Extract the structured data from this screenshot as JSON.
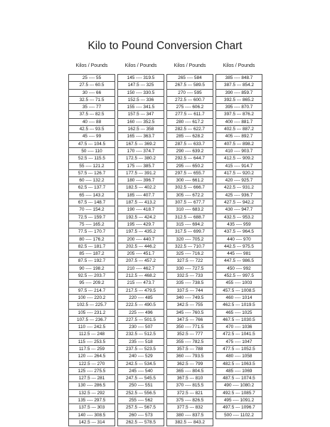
{
  "title": "Kilo to Pound Conversion Chart",
  "columns": [
    {
      "header": "Kilos / Pounds",
      "rows": [
        "25 ---- 55",
        "27.5 --- 60.5",
        "30 ---- 66",
        "32.5 --- 71.5",
        "35 ---- 77",
        "37.5 --- 82.5",
        "40 ---- 88",
        "42.5 --- 93.5",
        "45 ---- 99",
        "47.5 --- 104.5",
        "50 ---- 110",
        "52.5 --- 115.5",
        "55 ---- 121.2",
        "57.5 --- 126.7",
        "60 ---- 132.2",
        "62.5 --- 137.7",
        "65 ---- 143.2",
        "67.5 --- 148.7",
        "70 ---- 154.2",
        "72.5 --- 159.7",
        "75 ---- 165.2",
        "77.5 --- 170.7",
        "80 ---- 176.2",
        "82.5 --- 181.7",
        "85 ---- 187.2",
        "87.5 --- 192.7",
        "90 ---- 198.2",
        "92.5 --- 203.7",
        "95 ---- 209.2",
        "97.5 --- 214.7",
        "100 ---- 220.2",
        "102.5 --- 225.7",
        "105 ---- 231.2",
        "107.5 --- 236.7",
        "110 ---- 242.5",
        "112.5 --- 248",
        "115 ---- 253.5",
        "117.5 --- 259",
        "120 ---- 264.5",
        "122.5 --- 270",
        "125 ---- 275.5",
        "127.5 --- 281",
        "130 ---- 286.5",
        "132.5 --- 292",
        "135 ---- 297.5",
        "137.5 --- 303",
        "140 ---- 308.5",
        "142.5 --- 314"
      ]
    },
    {
      "header": "Kilos / Pounds",
      "rows": [
        "145 ---- 319.5",
        "147.5 --- 325",
        "150 ---- 330.5",
        "152.5 --- 336",
        "155 ---- 341.5",
        "157.5 --- 347",
        "160 ---- 352.5",
        "162.5 --- 358",
        "165 ---- 363.7",
        "167.5 --- 369.2",
        "170 ---- 374.7",
        "172.5 --- 380.2",
        "175 ---- 385.7",
        "177.5 --- 391.2",
        "180 ---- 396.7",
        "182.5 --- 402.2",
        "185 ---- 407.7",
        "187.5 --- 413.2",
        "190 ---- 418.7",
        "192.5 --- 424.2",
        "195 ---- 429.7",
        "197.5 --- 435.2",
        "200 ---- 440.7",
        "202.5 --- 446.2",
        "205 ---- 451.7",
        "207.5 --- 457.2",
        "210 ---- 462.7",
        "212.5 --- 468.2",
        "215 ---- 473.7",
        "217.5 --- 479.5",
        "220 ---- 485",
        "222.5 --- 490.5",
        "225 ---- 496",
        "227.5 --- 501.5",
        "230 ---- 507",
        "232.5 --- 512.5",
        "235 ---- 518",
        "237.5 --- 523.5",
        "240 ---- 529",
        "242.5 --- 534.5",
        "245 ---- 540",
        "247.5 --- 545.5",
        "250 ---- 551",
        "252.5 --- 556.5",
        "255 ---- 562",
        "257.5 --- 567.5",
        "260 ---- 573",
        "262.5 --- 578.5"
      ]
    },
    {
      "header": "Kilos / Pounds",
      "rows": [
        "265 ---- 584",
        "267.5 --- 589.5",
        "270 ---- 595",
        "272.5 --- 600.7",
        "275 ---- 606.2",
        "277.5 --- 611.7",
        "280 ---- 617.2",
        "282.5 --- 622.7",
        "285 ---- 628.2",
        "287.5 --- 633.7",
        "290 ---- 639.2",
        "292.5 --- 644.7",
        "295 ---- 650.2",
        "297.5 --- 655.7",
        "300 ---- 661.2",
        "302.5 --- 666.7",
        "305 ---- 672.2",
        "307.5 --- 677.7",
        "310 ---- 683.2",
        "312.5 --- 688.7",
        "315 ---- 694.2",
        "317.5 --- 699.7",
        "320 ---- 705.2",
        "322.5 --- 710.7",
        "325 ---- 716.2",
        "327.5 --- 722",
        "330 ---- 727.5",
        "332.5 --- 733",
        "335 ---- 738.5",
        "337.5 --- 744",
        "340 ---- 749.5",
        "342.5 --- 755",
        "345 ---- 760.5",
        "347.5 --- 766",
        "350 ---- 771.5",
        "352.5 --- 777",
        "355 ---- 782.5",
        "357.5 --- 788",
        "360 ---- 793.5",
        "362.5 --- 799",
        "365 ---- 804.5",
        "367.5 --- 810",
        "370 ---- 815.5",
        "372.5 --- 821",
        "375 ---- 826.5",
        "377.5 --- 832",
        "380 ---- 837.5",
        "382.5 --- 843.2"
      ]
    },
    {
      "header": "Kilos / Pounds",
      "rows": [
        "385 ---- 848.7",
        "387.5 --- 854.2",
        "390 ---- 859.7",
        "392.5 --- 865.2",
        "395 ---- 870.7",
        "397.5 --- 876.2",
        "400 ---- 881.7",
        "402.5 --- 887.2",
        "405 ---- 892.7",
        "407.5 --- 898.2",
        "410 ---- 903.7",
        "412.5 --- 909.2",
        "415 ---- 914.7",
        "417.5 --- 920.2",
        "420 ---- 925.7",
        "422.5 --- 931.2",
        "425 ---- 936.7",
        "427.5 --- 942.2",
        "430 ---- 947.7",
        "432.5 --- 953.2",
        "435 ---- 959",
        "437.5 --- 964.5",
        "440 ---- 970",
        "442.5 --- 975.5",
        "445 ---- 981",
        "447.5 --- 986.5",
        "450 ---- 992",
        "452.5 --- 997.5",
        "455 ---- 1003",
        "457.5 --- 1008.5",
        "460 ---- 1014",
        "462.5 --- 1019.5",
        "465 ---- 1025",
        "467.5 --- 1030.5",
        "470 ---- 1036",
        "472.5 --- 1041.5",
        "475 ---- 1047",
        "477.5 --- 1052.5",
        "480 ---- 1058",
        "482.5 --- 1063.5",
        "485 ---- 1069",
        "487.5 --- 1074.5",
        "490 ---- 1080.2",
        "492.5 --- 1085.7",
        "495 ---- 1091.2",
        "497.5 --- 1096.7",
        "500 ---- 1102.2"
      ]
    }
  ]
}
